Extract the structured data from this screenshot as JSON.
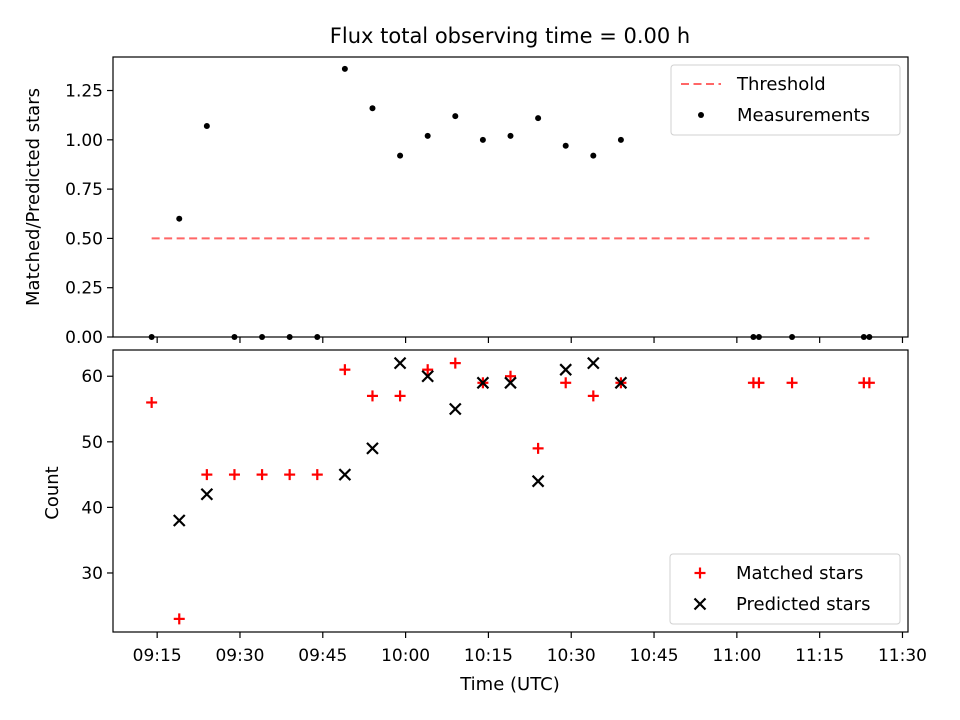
{
  "chart_data": {
    "title": "Flux total observing time = 0.00 h",
    "xlabel": "Time (UTC)",
    "x_ticks": [
      "09:15",
      "09:30",
      "09:45",
      "10:00",
      "10:15",
      "10:30",
      "10:45",
      "11:00",
      "11:15",
      "11:30"
    ],
    "x_range": [
      "09:07",
      "11:31"
    ],
    "panels": [
      {
        "type": "scatter",
        "ylabel": "Matched/Predicted stars",
        "ylim": [
          0,
          1.42
        ],
        "y_ticks": [
          "0.00",
          "0.25",
          "0.50",
          "0.75",
          "1.00",
          "1.25"
        ],
        "legend_position": "top-right",
        "threshold": {
          "name": "Threshold",
          "value": 0.5,
          "x_start": "09:14",
          "x_end": "11:24",
          "color": "#ff6666"
        },
        "series": [
          {
            "name": "Measurements",
            "color": "#000000",
            "marker": "dot",
            "points": [
              [
                "09:14",
                0.0
              ],
              [
                "09:19",
                0.6
              ],
              [
                "09:24",
                1.07
              ],
              [
                "09:29",
                0.0
              ],
              [
                "09:34",
                0.0
              ],
              [
                "09:39",
                0.0
              ],
              [
                "09:44",
                0.0
              ],
              [
                "09:49",
                1.36
              ],
              [
                "09:54",
                1.16
              ],
              [
                "09:59",
                0.92
              ],
              [
                "10:04",
                1.02
              ],
              [
                "10:09",
                1.12
              ],
              [
                "10:14",
                1.0
              ],
              [
                "10:19",
                1.02
              ],
              [
                "10:24",
                1.11
              ],
              [
                "10:29",
                0.97
              ],
              [
                "10:34",
                0.92
              ],
              [
                "10:39",
                1.0
              ],
              [
                "11:03",
                0.0
              ],
              [
                "11:04",
                0.0
              ],
              [
                "11:10",
                0.0
              ],
              [
                "11:23",
                0.0
              ],
              [
                "11:24",
                0.0
              ]
            ]
          }
        ]
      },
      {
        "type": "scatter",
        "ylabel": "Count",
        "ylim": [
          21,
          64
        ],
        "y_ticks": [
          "30",
          "40",
          "50",
          "60"
        ],
        "legend_position": "bottom-right",
        "series": [
          {
            "name": "Matched stars",
            "color": "#ff0000",
            "marker": "plus",
            "points": [
              [
                "09:14",
                56
              ],
              [
                "09:19",
                23
              ],
              [
                "09:24",
                45
              ],
              [
                "09:29",
                45
              ],
              [
                "09:34",
                45
              ],
              [
                "09:39",
                45
              ],
              [
                "09:44",
                45
              ],
              [
                "09:49",
                61
              ],
              [
                "09:54",
                57
              ],
              [
                "09:59",
                57
              ],
              [
                "10:04",
                61
              ],
              [
                "10:09",
                62
              ],
              [
                "10:14",
                59
              ],
              [
                "10:19",
                60
              ],
              [
                "10:24",
                49
              ],
              [
                "10:29",
                59
              ],
              [
                "10:34",
                57
              ],
              [
                "10:39",
                59
              ],
              [
                "11:03",
                59
              ],
              [
                "11:04",
                59
              ],
              [
                "11:10",
                59
              ],
              [
                "11:23",
                59
              ],
              [
                "11:24",
                59
              ]
            ]
          },
          {
            "name": "Predicted stars",
            "color": "#000000",
            "marker": "x",
            "points": [
              [
                "09:19",
                38
              ],
              [
                "09:24",
                42
              ],
              [
                "09:49",
                45
              ],
              [
                "09:54",
                49
              ],
              [
                "09:59",
                62
              ],
              [
                "10:04",
                60
              ],
              [
                "10:09",
                55
              ],
              [
                "10:14",
                59
              ],
              [
                "10:19",
                59
              ],
              [
                "10:24",
                44
              ],
              [
                "10:29",
                61
              ],
              [
                "10:34",
                62
              ],
              [
                "10:39",
                59
              ]
            ]
          }
        ]
      }
    ]
  }
}
